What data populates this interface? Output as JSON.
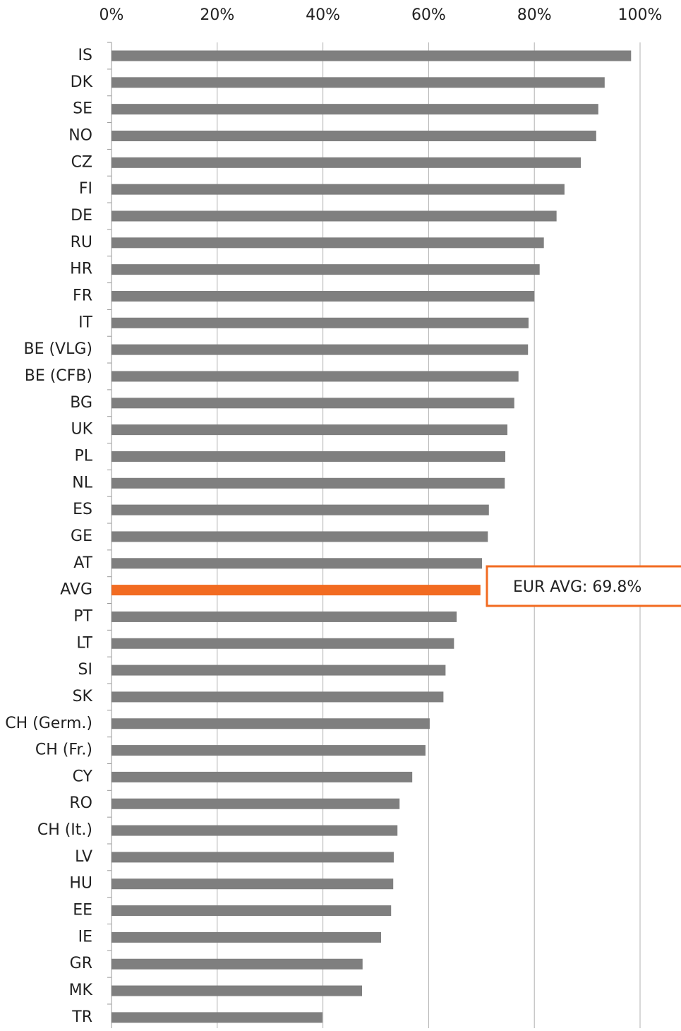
{
  "chart_data": {
    "type": "hbar",
    "categories": [
      "IS",
      "DK",
      "SE",
      "NO",
      "CZ",
      "FI",
      "DE",
      "RU",
      "HR",
      "FR",
      "IT",
      "BE (VLG)",
      "BE (CFB)",
      "BG",
      "UK",
      "PL",
      "NL",
      "ES",
      "GE",
      "AT",
      "AVG",
      "PT",
      "LT",
      "SI",
      "SK",
      "CH (Germ.)",
      "CH (Fr.)",
      "CY",
      "RO",
      "CH (It.)",
      "LV",
      "HU",
      "EE",
      "IE",
      "GR",
      "MK",
      "TR"
    ],
    "values": [
      98.3,
      93.3,
      92.1,
      91.7,
      88.8,
      85.7,
      84.2,
      81.8,
      81.0,
      80.0,
      78.9,
      78.8,
      77.0,
      76.2,
      74.9,
      74.5,
      74.4,
      71.4,
      71.2,
      70.1,
      69.8,
      65.3,
      64.8,
      63.2,
      62.8,
      60.2,
      59.4,
      56.9,
      54.5,
      54.1,
      53.4,
      53.3,
      52.9,
      51.0,
      47.5,
      47.4,
      39.9
    ],
    "colors": [
      "#7f7f7f",
      "#7f7f7f",
      "#7f7f7f",
      "#7f7f7f",
      "#7f7f7f",
      "#7f7f7f",
      "#7f7f7f",
      "#7f7f7f",
      "#7f7f7f",
      "#7f7f7f",
      "#7f7f7f",
      "#7f7f7f",
      "#7f7f7f",
      "#7f7f7f",
      "#7f7f7f",
      "#7f7f7f",
      "#7f7f7f",
      "#7f7f7f",
      "#7f7f7f",
      "#7f7f7f",
      "#f26b21",
      "#7f7f7f",
      "#7f7f7f",
      "#7f7f7f",
      "#7f7f7f",
      "#7f7f7f",
      "#7f7f7f",
      "#7f7f7f",
      "#7f7f7f",
      "#7f7f7f",
      "#7f7f7f",
      "#7f7f7f",
      "#7f7f7f",
      "#7f7f7f",
      "#7f7f7f",
      "#7f7f7f",
      "#7f7f7f"
    ],
    "xlim": [
      0,
      100
    ],
    "xticks": [
      {
        "value": 0,
        "label": "0%"
      },
      {
        "value": 20,
        "label": "20%"
      },
      {
        "value": 40,
        "label": "40%"
      },
      {
        "value": 60,
        "label": "60%"
      },
      {
        "value": 80,
        "label": "80%"
      },
      {
        "value": 100,
        "label": "100%"
      }
    ],
    "grid": true,
    "annotation": {
      "text": "EUR AVG: 69.8%",
      "color": "#f26b21"
    }
  }
}
